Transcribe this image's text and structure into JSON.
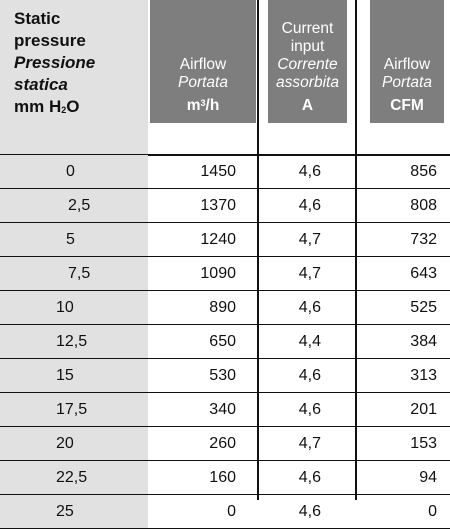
{
  "header": {
    "static_line1": "Static",
    "static_line2": "pressure",
    "static_it1": "Pressione",
    "static_it2": "statica",
    "static_unit_a": "mm H",
    "static_unit_sub": "2",
    "static_unit_b": "O",
    "col1": {
      "line1": "Airflow",
      "line2": "Portata",
      "unit_a": "m",
      "unit_sup": "3",
      "unit_b": "/h"
    },
    "col2": {
      "line1": "Current",
      "line2": "input",
      "line3": "Corrente",
      "line4": "assorbita",
      "unit": "A"
    },
    "col3": {
      "line1": "Airflow",
      "line2": "Portata",
      "unit": "CFM"
    }
  },
  "rows": [
    {
      "p": "0",
      "m3h": "1450",
      "a": "4,6",
      "cfm": "856"
    },
    {
      "p": "2,5",
      "m3h": "1370",
      "a": "4,6",
      "cfm": "808"
    },
    {
      "p": "5",
      "m3h": "1240",
      "a": "4,7",
      "cfm": "732"
    },
    {
      "p": "7,5",
      "m3h": "1090",
      "a": "4,7",
      "cfm": "643"
    },
    {
      "p": "10",
      "m3h": "890",
      "a": "4,6",
      "cfm": "525"
    },
    {
      "p": "12,5",
      "m3h": "650",
      "a": "4,4",
      "cfm": "384"
    },
    {
      "p": "15",
      "m3h": "530",
      "a": "4,6",
      "cfm": "313"
    },
    {
      "p": "17,5",
      "m3h": "340",
      "a": "4,6",
      "cfm": "201"
    },
    {
      "p": "20",
      "m3h": "260",
      "a": "4,7",
      "cfm": "153"
    },
    {
      "p": "22,5",
      "m3h": "160",
      "a": "4,6",
      "cfm": "94"
    },
    {
      "p": "25",
      "m3h": "0",
      "a": "4,6",
      "cfm": "0"
    }
  ]
}
